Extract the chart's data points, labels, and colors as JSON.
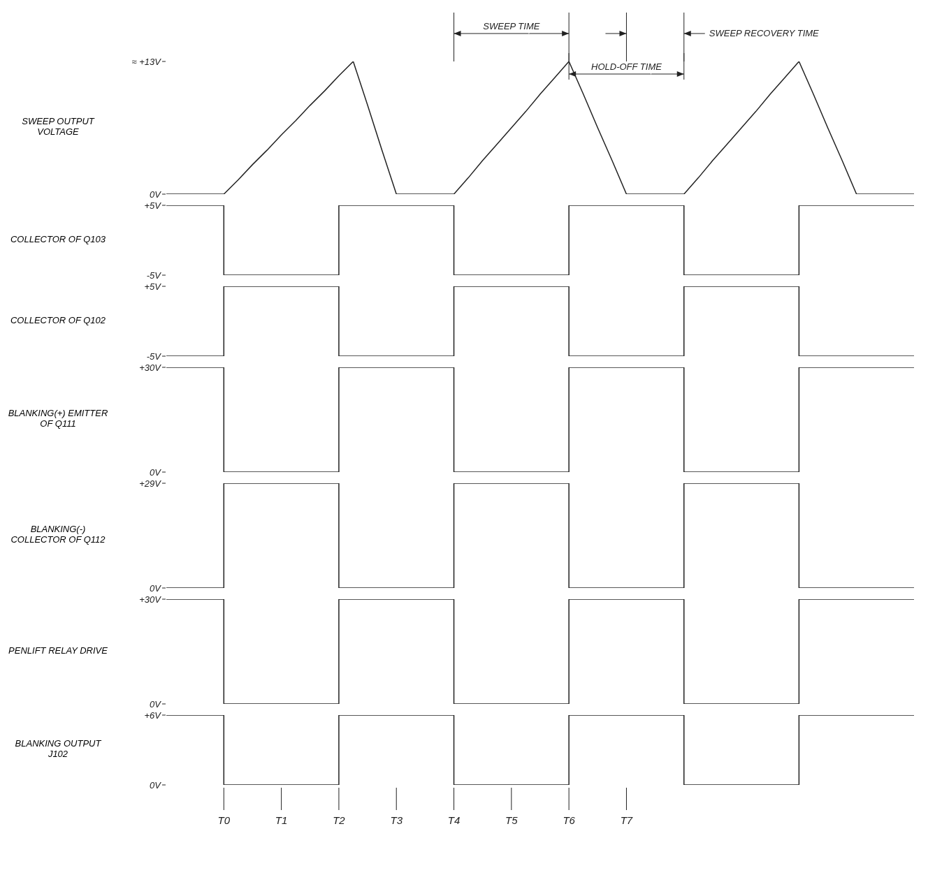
{
  "chart_data": [
    {
      "type": "line",
      "ylabel": "SWEEP OUTPUT VOLTAGE",
      "categories": [
        null,
        null,
        null,
        null,
        null,
        null,
        null,
        null,
        null,
        null,
        null,
        null,
        null,
        null,
        null,
        null,
        null,
        null,
        null,
        null,
        null,
        null,
        null,
        null,
        null,
        null,
        null,
        null,
        null,
        null,
        null,
        null,
        null,
        null,
        null,
        null,
        null,
        null,
        null,
        null,
        null,
        null,
        null,
        null,
        null,
        null,
        null,
        null,
        null,
        null,
        null,
        null,
        null
      ],
      "values": [
        0,
        0,
        0,
        0,
        0,
        1.4,
        2.9,
        4.3,
        5.8,
        7.2,
        8.7,
        10.1,
        11.6,
        13,
        8.7,
        4.3,
        0,
        0,
        0,
        0,
        0,
        1.6,
        3.3,
        4.9,
        6.5,
        8.1,
        9.8,
        11.4,
        13,
        9.8,
        6.5,
        3.3,
        0,
        0,
        0,
        0,
        0,
        1.6,
        3.3,
        4.9,
        6.5,
        8.1,
        9.8,
        11.4,
        13,
        9.8,
        6.5,
        3.3,
        0,
        0,
        0,
        0,
        0
      ],
      "color": "#222222",
      "ylim": [
        0,
        13
      ],
      "yticks": [
        {
          "value": 0,
          "label": "0V"
        },
        {
          "value": 13,
          "label": "≈ +13V"
        }
      ],
      "tick_labels": "y",
      "annotations": [
        "SWEEP TIME",
        "HOLD-OFF TIME",
        "SWEEP RECOVERY TIME"
      ]
    },
    {
      "type": "step",
      "ylabel": "COLLECTOR OF Q103",
      "categories": [
        null,
        null,
        null,
        null,
        null,
        null,
        null,
        null,
        null,
        null,
        null,
        null,
        null,
        null,
        null,
        null,
        null,
        null,
        null,
        null,
        null,
        null,
        null,
        null,
        null,
        null,
        null,
        null,
        null,
        null,
        null,
        null,
        null,
        null,
        null,
        null,
        null,
        null,
        null,
        null,
        null,
        null,
        null,
        null,
        null,
        null,
        null,
        null,
        null,
        null,
        null,
        null,
        null
      ],
      "values": [
        5,
        5,
        5,
        5,
        -5,
        -5,
        -5,
        -5,
        -5,
        -5,
        -5,
        -5,
        5,
        5,
        5,
        5,
        5,
        5,
        5,
        5,
        -5,
        -5,
        -5,
        -5,
        -5,
        -5,
        -5,
        -5,
        5,
        5,
        5,
        5,
        5,
        5,
        5,
        5,
        -5,
        -5,
        -5,
        -5,
        -5,
        -5,
        -5,
        -5,
        5,
        5,
        5,
        5,
        5,
        5,
        5,
        5,
        5
      ],
      "color": "#222222",
      "ylim": [
        -5,
        5
      ],
      "yticks": [
        {
          "value": -5,
          "label": "-5V"
        },
        {
          "value": 5,
          "label": "+5V"
        }
      ],
      "tick_labels": "y"
    },
    {
      "type": "step",
      "ylabel": "COLLECTOR OF Q102",
      "categories": [
        null,
        null,
        null,
        null,
        null,
        null,
        null,
        null,
        null,
        null,
        null,
        null,
        null,
        null,
        null,
        null,
        null,
        null,
        null,
        null,
        null,
        null,
        null,
        null,
        null,
        null,
        null,
        null,
        null,
        null,
        null,
        null,
        null,
        null,
        null,
        null,
        null,
        null,
        null,
        null,
        null,
        null,
        null,
        null,
        null,
        null,
        null,
        null,
        null,
        null,
        null,
        null,
        null
      ],
      "values": [
        -5,
        -5,
        -5,
        -5,
        5,
        5,
        5,
        5,
        5,
        5,
        5,
        5,
        -5,
        -5,
        -5,
        -5,
        -5,
        -5,
        -5,
        -5,
        5,
        5,
        5,
        5,
        5,
        5,
        5,
        5,
        -5,
        -5,
        -5,
        -5,
        -5,
        -5,
        -5,
        -5,
        5,
        5,
        5,
        5,
        5,
        5,
        5,
        5,
        -5,
        -5,
        -5,
        -5,
        -5,
        -5,
        -5,
        -5,
        -5
      ],
      "color": "#222222",
      "ylim": [
        -5,
        5
      ],
      "yticks": [
        {
          "value": -5,
          "label": "-5V"
        },
        {
          "value": 5,
          "label": "+5V"
        }
      ],
      "tick_labels": "y"
    },
    {
      "type": "step",
      "ylabel": "BLANKING(+) EMITTER OF Q111",
      "categories": [
        null,
        null,
        null,
        null,
        null,
        null,
        null,
        null,
        null,
        null,
        null,
        null,
        null,
        null,
        null,
        null,
        null,
        null,
        null,
        null,
        null,
        null,
        null,
        null,
        null,
        null,
        null,
        null,
        null,
        null,
        null,
        null,
        null,
        null,
        null,
        null,
        null,
        null,
        null,
        null,
        null,
        null,
        null,
        null,
        null,
        null,
        null,
        null,
        null,
        null,
        null,
        null,
        null
      ],
      "values": [
        30,
        30,
        30,
        30,
        0,
        0,
        0,
        0,
        0,
        0,
        0,
        0,
        30,
        30,
        30,
        30,
        30,
        30,
        30,
        30,
        0,
        0,
        0,
        0,
        0,
        0,
        0,
        0,
        30,
        30,
        30,
        30,
        30,
        30,
        30,
        30,
        0,
        0,
        0,
        0,
        0,
        0,
        0,
        0,
        30,
        30,
        30,
        30,
        30,
        30,
        30,
        30,
        30
      ],
      "color": "#222222",
      "ylim": [
        0,
        30
      ],
      "yticks": [
        {
          "value": 0,
          "label": "0V"
        },
        {
          "value": 30,
          "label": "+30V"
        }
      ],
      "tick_labels": "y"
    },
    {
      "type": "step",
      "ylabel": "BLANKING(-) COLLECTOR OF Q112",
      "categories": [
        null,
        null,
        null,
        null,
        null,
        null,
        null,
        null,
        null,
        null,
        null,
        null,
        null,
        null,
        null,
        null,
        null,
        null,
        null,
        null,
        null,
        null,
        null,
        null,
        null,
        null,
        null,
        null,
        null,
        null,
        null,
        null,
        null,
        null,
        null,
        null,
        null,
        null,
        null,
        null,
        null,
        null,
        null,
        null,
        null,
        null,
        null,
        null,
        null,
        null,
        null,
        null,
        null
      ],
      "values": [
        0,
        0,
        0,
        0,
        29,
        29,
        29,
        29,
        29,
        29,
        29,
        29,
        0,
        0,
        0,
        0,
        0,
        0,
        0,
        0,
        29,
        29,
        29,
        29,
        29,
        29,
        29,
        29,
        0,
        0,
        0,
        0,
        0,
        0,
        0,
        0,
        29,
        29,
        29,
        29,
        29,
        29,
        29,
        29,
        0,
        0,
        0,
        0,
        0,
        0,
        0,
        0,
        0
      ],
      "color": "#222222",
      "ylim": [
        0,
        29
      ],
      "yticks": [
        {
          "value": 0,
          "label": "0V"
        },
        {
          "value": 29,
          "label": "+29V"
        }
      ],
      "tick_labels": "y"
    },
    {
      "type": "step",
      "ylabel": "PENLIFT RELAY DRIVE",
      "categories": [
        null,
        null,
        null,
        null,
        null,
        null,
        null,
        null,
        null,
        null,
        null,
        null,
        null,
        null,
        null,
        null,
        null,
        null,
        null,
        null,
        null,
        null,
        null,
        null,
        null,
        null,
        null,
        null,
        null,
        null,
        null,
        null,
        null,
        null,
        null,
        null,
        null,
        null,
        null,
        null,
        null,
        null,
        null,
        null,
        null,
        null,
        null,
        null,
        null,
        null,
        null,
        null,
        null
      ],
      "values": [
        30,
        30,
        30,
        30,
        0,
        0,
        0,
        0,
        0,
        0,
        0,
        0,
        30,
        30,
        30,
        30,
        30,
        30,
        30,
        30,
        0,
        0,
        0,
        0,
        0,
        0,
        0,
        0,
        30,
        30,
        30,
        30,
        30,
        30,
        30,
        30,
        0,
        0,
        0,
        0,
        0,
        0,
        0,
        0,
        30,
        30,
        30,
        30,
        30,
        30,
        30,
        30,
        30
      ],
      "color": "#222222",
      "ylim": [
        0,
        30
      ],
      "yticks": [
        {
          "value": 0,
          "label": "0V"
        },
        {
          "value": 30,
          "label": "+30V"
        }
      ],
      "tick_labels": "y"
    },
    {
      "type": "step",
      "ylabel": "BLANKING OUTPUT J102",
      "categories": [
        null,
        null,
        null,
        null,
        "T0",
        null,
        null,
        null,
        "T1",
        null,
        null,
        null,
        "T2",
        null,
        null,
        null,
        "T3",
        null,
        null,
        null,
        "T4",
        null,
        null,
        null,
        "T5",
        null,
        null,
        null,
        "T6",
        null,
        null,
        null,
        "T7",
        null,
        null,
        null,
        null,
        null,
        null,
        null,
        null,
        null,
        null,
        null,
        null,
        null,
        null,
        null,
        null,
        null,
        null,
        null,
        null
      ],
      "values": [
        6,
        6,
        6,
        6,
        0,
        0,
        0,
        0,
        0,
        0,
        0,
        0,
        6,
        6,
        6,
        6,
        6,
        6,
        6,
        6,
        0,
        0,
        0,
        0,
        0,
        0,
        0,
        0,
        6,
        6,
        6,
        6,
        6,
        6,
        6,
        6,
        0,
        0,
        0,
        0,
        0,
        0,
        0,
        0,
        6,
        6,
        6,
        6,
        6,
        6,
        6,
        6,
        6
      ],
      "color": "#222222",
      "ylim": [
        0,
        6
      ],
      "yticks": [
        {
          "value": 0,
          "label": "0V"
        },
        {
          "value": 6,
          "label": "+6V"
        }
      ]
    }
  ]
}
